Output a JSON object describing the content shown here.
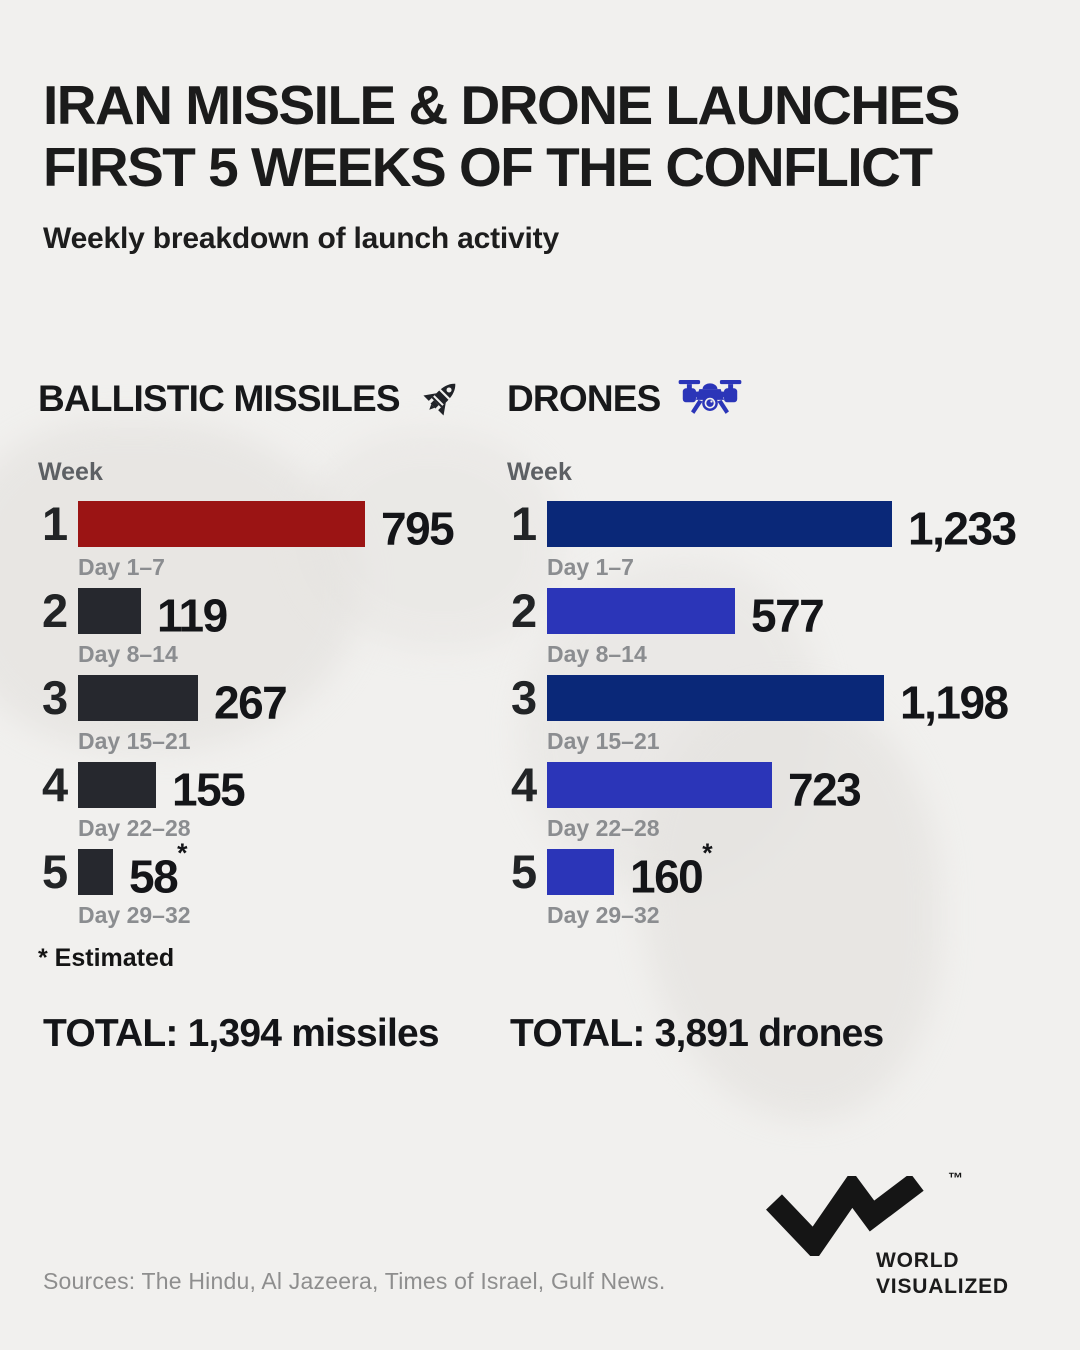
{
  "header": {
    "title_line1": "IRAN MISSILE & DRONE LAUNCHES",
    "title_line2": "FIRST 5 WEEKS OF THE CONFLICT",
    "subtitle": "Weekly breakdown of launch activity"
  },
  "chart_data": [
    {
      "id": "ballistic-missiles",
      "type": "bar",
      "orientation": "horizontal",
      "title": "BALLISTIC MISSILES",
      "icon": "missile-icon",
      "axis_label": "Week",
      "categories": [
        "1",
        "2",
        "3",
        "4",
        "5"
      ],
      "category_sublabels": [
        "Day 1–7",
        "Day 8–14",
        "Day 15–21",
        "Day 22–28",
        "Day 29–32"
      ],
      "values": [
        795,
        119,
        267,
        155,
        58
      ],
      "value_labels": [
        "795",
        "119",
        "267",
        "155",
        "58"
      ],
      "value_suffixes": [
        "",
        "",
        "",
        "",
        "*"
      ],
      "bar_colors": [
        "#9b1414",
        "#26282e",
        "#26282e",
        "#26282e",
        "#26282e"
      ],
      "xlim": [
        0,
        795
      ],
      "grid": false,
      "note": "Week 5 value is estimated",
      "total_label": "TOTAL: 1,394 missiles",
      "total_value": 1394
    },
    {
      "id": "drones",
      "type": "bar",
      "orientation": "horizontal",
      "title": "DRONES",
      "icon": "drone-icon",
      "axis_label": "Week",
      "categories": [
        "1",
        "2",
        "3",
        "4",
        "5"
      ],
      "category_sublabels": [
        "Day 1–7",
        "Day 8–14",
        "Day 15–21",
        "Day 22–28",
        "Day 29–32"
      ],
      "values": [
        1233,
        577,
        1198,
        723,
        160
      ],
      "value_labels": [
        "1,233",
        "577",
        "1,198",
        "723",
        "160"
      ],
      "value_suffixes": [
        "",
        "",
        "",
        "",
        "*"
      ],
      "bar_colors": [
        "#0a2878",
        "#2b35b8",
        "#0a2878",
        "#2b35b8",
        "#2b35b8"
      ],
      "xlim": [
        0,
        1233
      ],
      "grid": false,
      "note": "Week 5 value is estimated",
      "total_label": "TOTAL: 3,891 drones",
      "total_value": 3891
    }
  ],
  "footnote": "* Estimated",
  "footer": {
    "sources": "Sources: The Hindu, Al Jazeera, Times of Israel, Gulf News.",
    "logo_line1": "WORLD",
    "logo_line2": "VISUALIZED",
    "trademark": "™"
  },
  "colors": {
    "background": "#f1f0ee",
    "missile_red": "#9b1414",
    "charcoal": "#26282e",
    "navy": "#0a2878",
    "royal_blue": "#2b35b8",
    "label_gray": "#8b8d90",
    "axis_gray": "#5d6064"
  }
}
